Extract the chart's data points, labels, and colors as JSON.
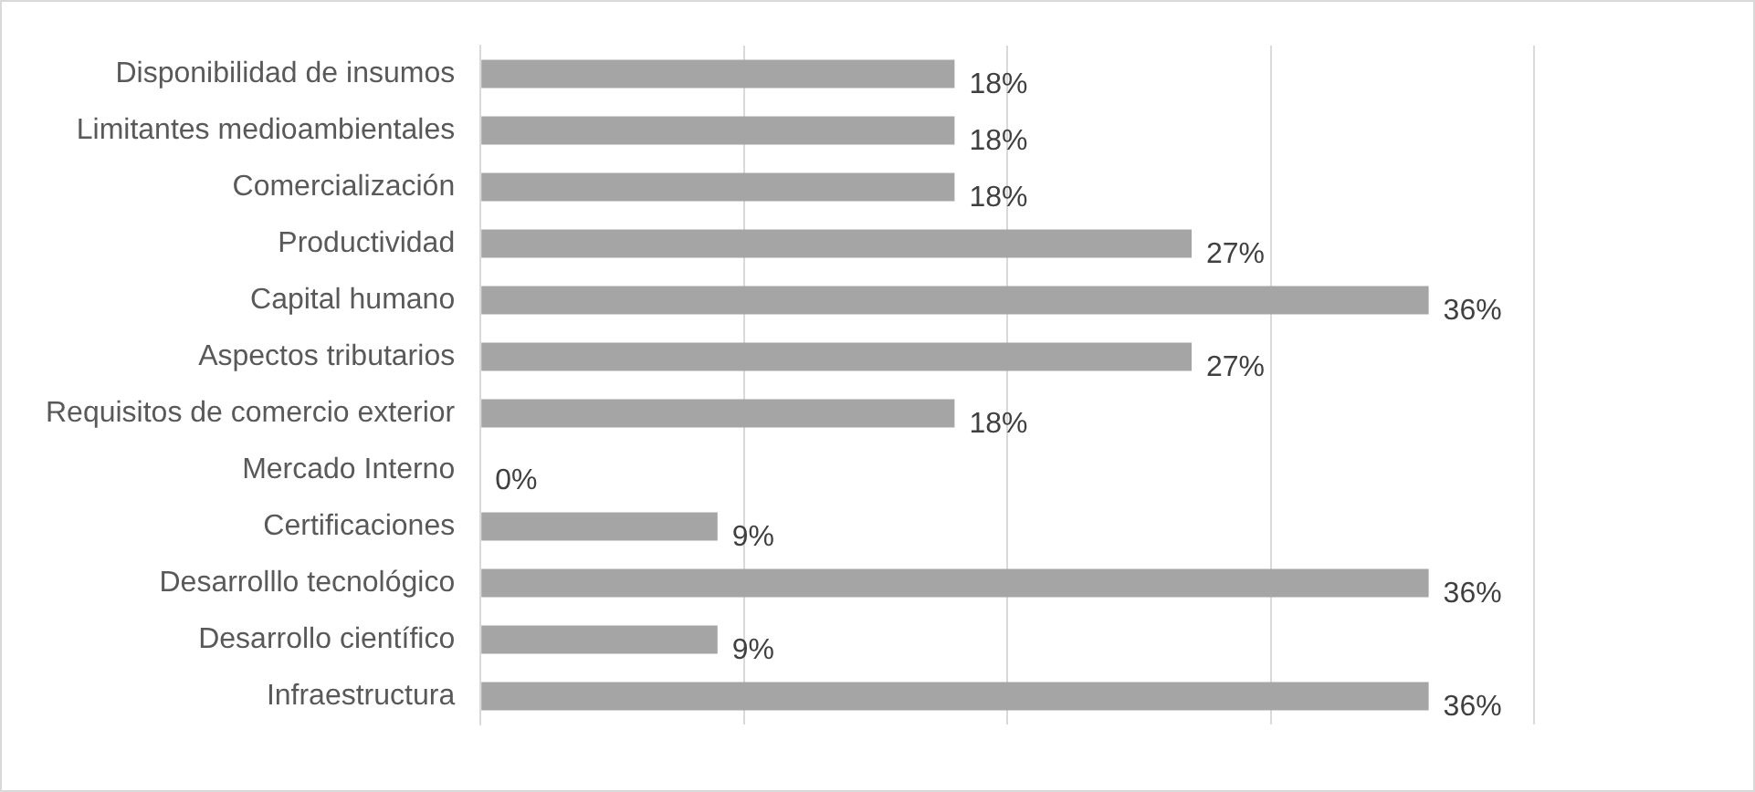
{
  "chart_data": {
    "type": "bar",
    "orientation": "horizontal",
    "categories": [
      "Disponibilidad de insumos",
      "Limitantes medioambientales",
      "Comercialización",
      "Productividad",
      "Capital humano",
      "Aspectos tributarios",
      "Requisitos de comercio exterior",
      "Mercado Interno",
      "Certificaciones",
      "Desarrolllo tecnológico",
      "Desarrollo científico",
      "Infraestructura"
    ],
    "values": [
      18,
      18,
      18,
      27,
      36,
      27,
      18,
      0,
      9,
      36,
      9,
      36
    ],
    "value_labels": [
      "18%",
      "18%",
      "18%",
      "27%",
      "36%",
      "27%",
      "18%",
      "0%",
      "9%",
      "36%",
      "9%",
      "36%"
    ],
    "color": "#a5a5a5",
    "xlim": [
      0,
      40
    ],
    "xticks": [
      {
        "value": 0,
        "label": null
      },
      {
        "value": 10,
        "label": null
      },
      {
        "value": 20,
        "label": null
      },
      {
        "value": 30,
        "label": null
      },
      {
        "value": 40,
        "label": null
      }
    ],
    "tick_labels": "y",
    "grid": "x",
    "legend": false
  }
}
